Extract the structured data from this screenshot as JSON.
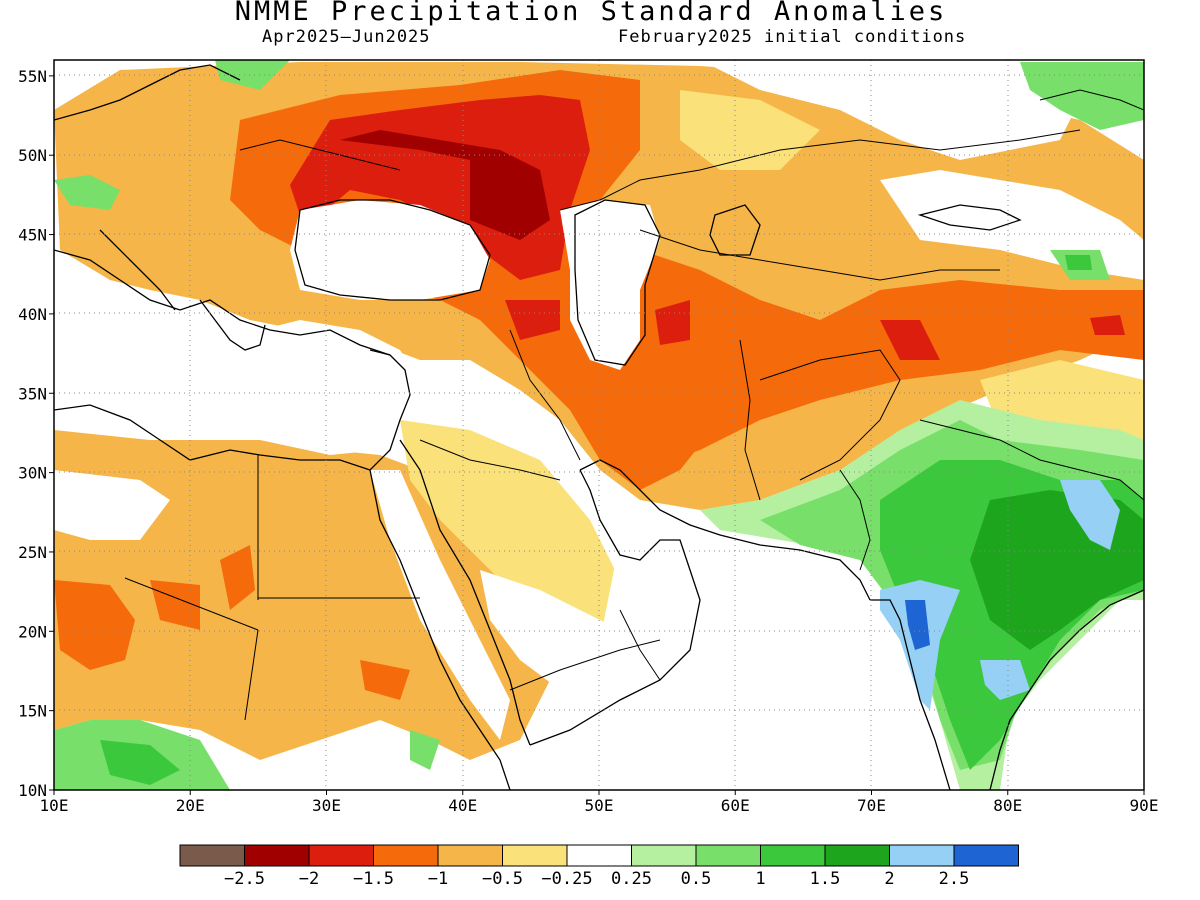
{
  "title": "NMME Precipitation Standard Anomalies",
  "period": "Apr2025—Jun2025",
  "initial_conditions": "February2025 initial conditions",
  "lon_ticks": [
    "10E",
    "20E",
    "30E",
    "40E",
    "50E",
    "60E",
    "70E",
    "80E",
    "90E"
  ],
  "lat_ticks": [
    "55N",
    "50N",
    "45N",
    "40N",
    "35N",
    "30N",
    "25N",
    "20N",
    "15N",
    "10N"
  ],
  "colorbar": {
    "colors": [
      "#7a5a4a",
      "#a00000",
      "#dc1e0e",
      "#f56a0a",
      "#f5b548",
      "#fbe17a",
      "#ffffff",
      "#b4f0a0",
      "#78e06a",
      "#3cc83c",
      "#1ea51e",
      "#96d0f5",
      "#1e64d2"
    ],
    "labels": [
      "-2.5",
      "-2",
      "-1.5",
      "-1",
      "-0.5",
      "-0.25",
      "0.25",
      "0.5",
      "1",
      "1.5",
      "2",
      "2.5"
    ]
  },
  "legend_colors": {
    "brown": "#7a5a4a",
    "dark_red": "#a00000",
    "red": "#dc1e0e",
    "orange": "#f56a0a",
    "light_orange": "#f5b548",
    "yellow": "#fbe17a",
    "white": "#ffffff",
    "light_green": "#b4f0a0",
    "green": "#78e06a",
    "mid_green": "#3cc83c",
    "dark_green": "#1ea51e",
    "light_blue": "#96d0f5",
    "blue": "#1e64d2"
  },
  "map_extent": {
    "lon": [
      10,
      90
    ],
    "lat": [
      10,
      56
    ]
  }
}
